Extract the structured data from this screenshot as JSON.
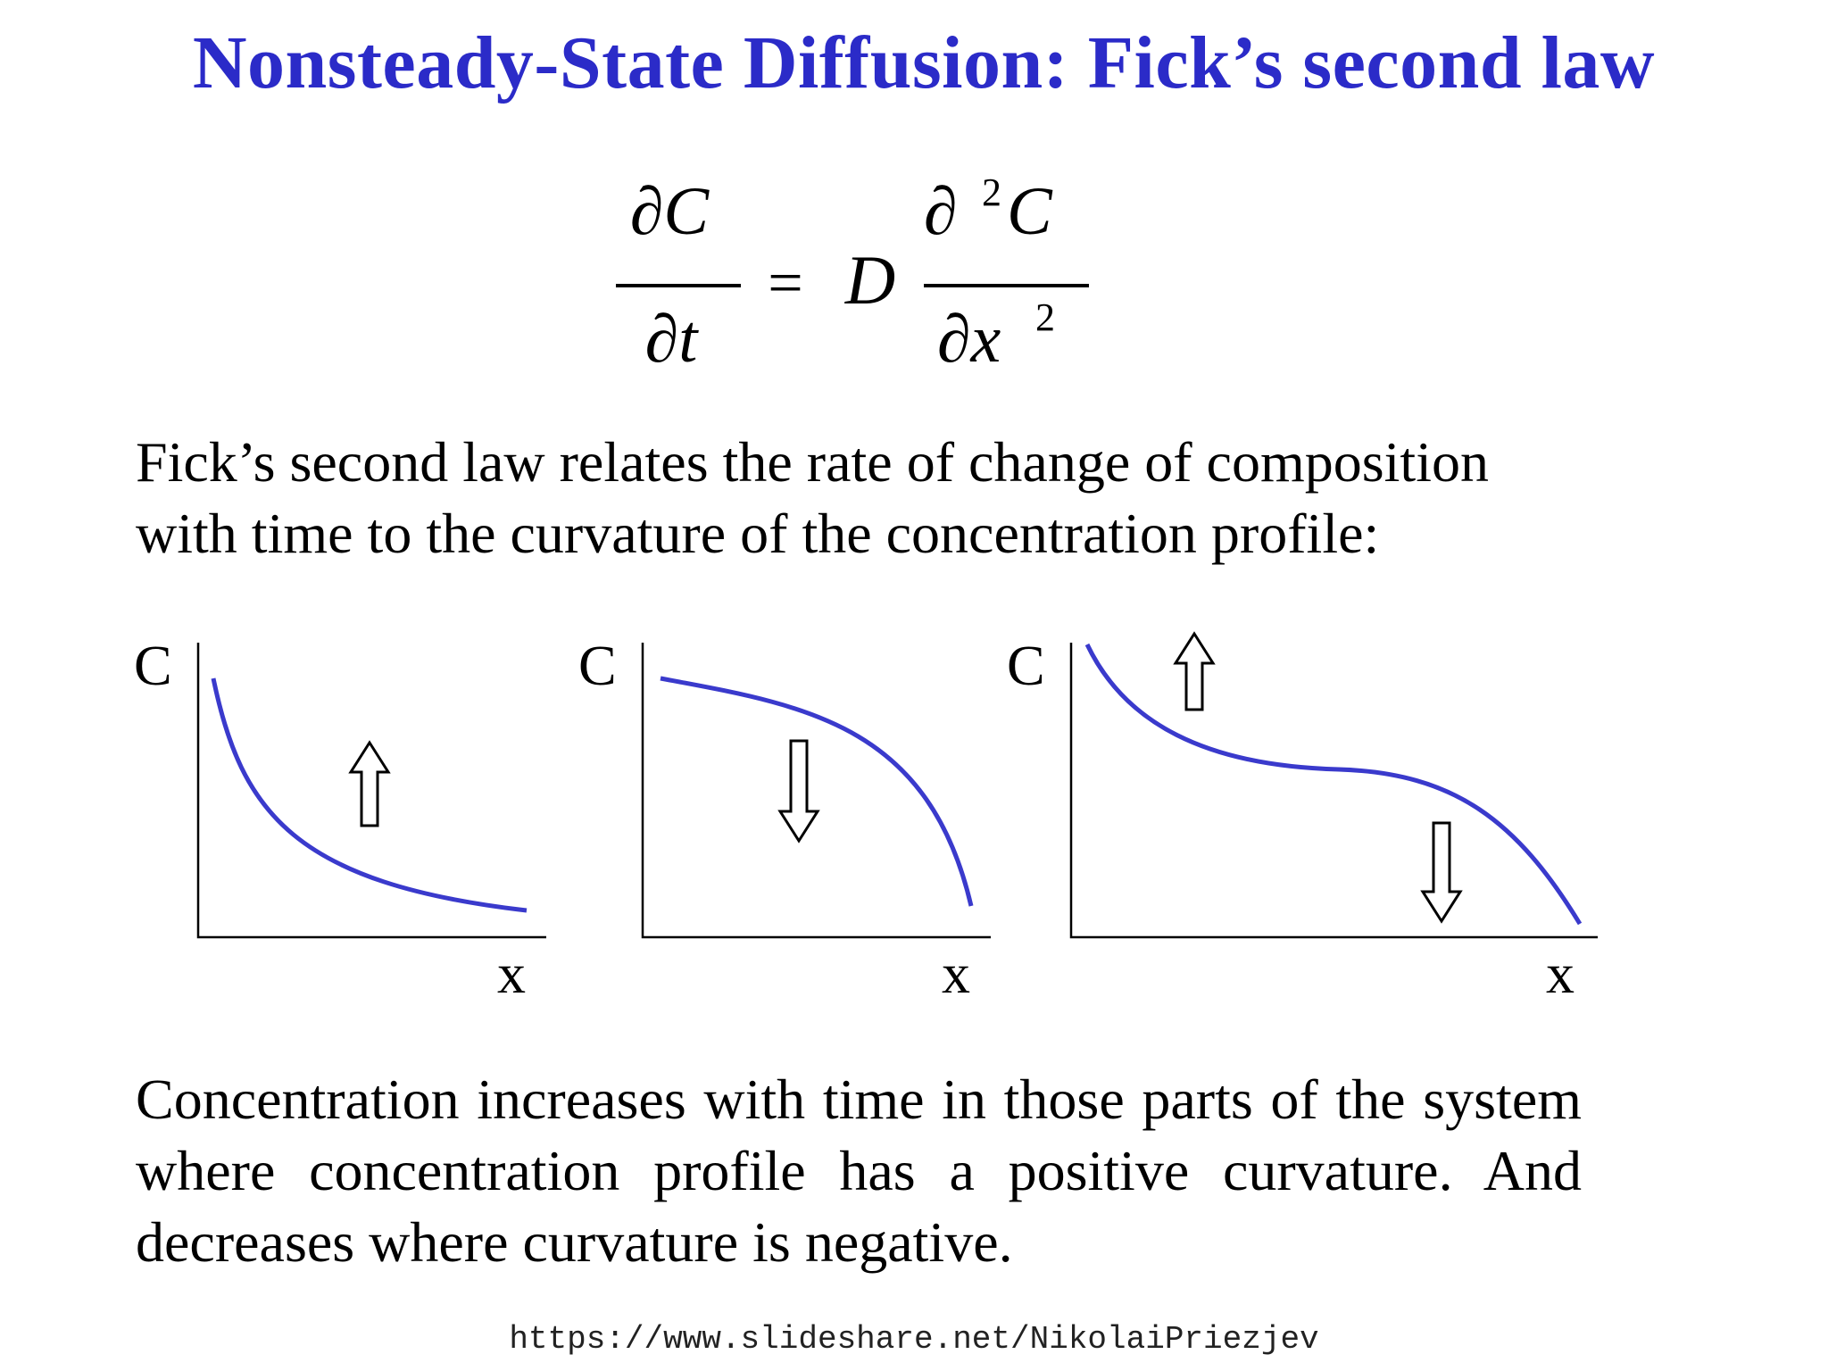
{
  "title": "Nonsteady-State Diffusion: Fick’s second law",
  "equation": {
    "lhs_numerator": "∂C",
    "lhs_denominator": "∂t",
    "equals": "=",
    "coefficient": "D",
    "rhs_numerator_partial": "∂",
    "rhs_numerator_power": "2",
    "rhs_numerator_var": "C",
    "rhs_denominator_var": "∂x",
    "rhs_denominator_power": "2"
  },
  "intro_text": "Fick’s second law relates the rate of change of composition with time to the curvature of the concentration profile:",
  "graphs": [
    {
      "y_label": "C",
      "x_label": "x"
    },
    {
      "y_label": "C",
      "x_label": "x"
    },
    {
      "y_label": "C",
      "x_label": "x"
    }
  ],
  "conclusion_text": "Concentration increases with time in those parts of the system where concentration profile has a positive curvature.  And decreases where curvature is negative.",
  "source_url": "https://www.slideshare.net/NikolaiPriezjev",
  "colors": {
    "title": "#2b2bc8",
    "curve": "#3a3acc",
    "text": "#000000"
  }
}
